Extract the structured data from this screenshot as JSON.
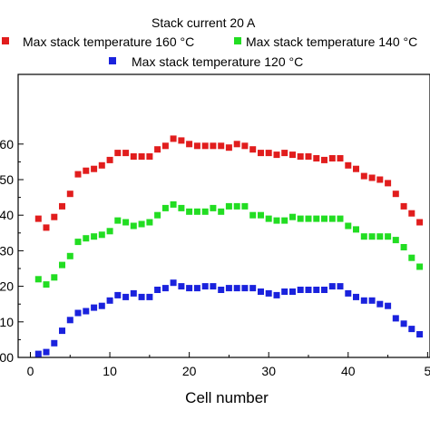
{
  "chart_data": {
    "type": "scatter",
    "legend_title": "Stack current 20 A",
    "xlabel": "Cell number",
    "ylabel": "",
    "x_ticks": [
      "0",
      "10",
      "20",
      "30",
      "40",
      "5"
    ],
    "y_ticks": [
      "00",
      "10",
      "20",
      "30",
      "40",
      "50",
      "60"
    ],
    "xlim": [
      -1,
      50
    ],
    "ylim": [
      0,
      65
    ],
    "x": [
      1,
      2,
      3,
      4,
      5,
      6,
      7,
      8,
      9,
      10,
      11,
      12,
      13,
      14,
      15,
      16,
      17,
      18,
      19,
      20,
      21,
      22,
      23,
      24,
      25,
      26,
      27,
      28,
      29,
      30,
      31,
      32,
      33,
      34,
      35,
      36,
      37,
      38,
      39,
      40,
      41,
      42,
      43,
      44,
      45,
      46,
      47,
      48,
      49,
      50
    ],
    "series": [
      {
        "name": "Max stack temperature 160 °C",
        "color": "#e11d1d",
        "values": [
          139,
          136.5,
          139.5,
          142.5,
          146,
          151.5,
          152.5,
          153,
          154,
          155.5,
          157.5,
          157.5,
          156.5,
          156.5,
          156.5,
          158.5,
          159.5,
          161.5,
          161,
          160,
          159.5,
          159.5,
          159.5,
          159.5,
          159,
          160,
          159.5,
          158.5,
          157.5,
          157.5,
          157,
          157.5,
          157,
          156.5,
          156.5,
          156,
          155.5,
          156,
          156,
          154,
          153,
          151,
          150.5,
          150,
          149,
          146,
          142.5,
          140.5,
          138,
          138
        ]
      },
      {
        "name": "Max stack temperature 140 °C",
        "color": "#22dd22",
        "values": [
          122,
          120.5,
          122.5,
          126,
          128.5,
          132.5,
          133.5,
          134,
          134.5,
          135.5,
          138.5,
          138,
          137,
          137.5,
          138,
          140,
          142,
          143,
          142,
          141,
          141,
          141,
          142,
          141,
          142.5,
          142.5,
          142.5,
          140,
          140,
          139,
          138.5,
          138.5,
          139.5,
          139,
          139,
          139,
          139,
          139,
          139,
          137,
          136,
          134,
          134,
          134,
          134,
          133,
          131,
          128,
          125.5,
          126
        ]
      },
      {
        "name": "Max stack temperature 120 °C",
        "color": "#1a22dd",
        "values": [
          101,
          101.5,
          104,
          107.5,
          110.5,
          112.5,
          113,
          114,
          114.5,
          116,
          117.5,
          117,
          118,
          117,
          117,
          119,
          119.5,
          121,
          120,
          119.5,
          119.5,
          120,
          120,
          119,
          119.5,
          119.5,
          119.5,
          119.5,
          118.5,
          118,
          117.5,
          118.5,
          118.5,
          119,
          119,
          119,
          119,
          120,
          120,
          118,
          117,
          116,
          116,
          115,
          114.5,
          111,
          109.5,
          108,
          106.5,
          106
        ]
      }
    ],
    "grid": false,
    "legend_placement": "top"
  }
}
